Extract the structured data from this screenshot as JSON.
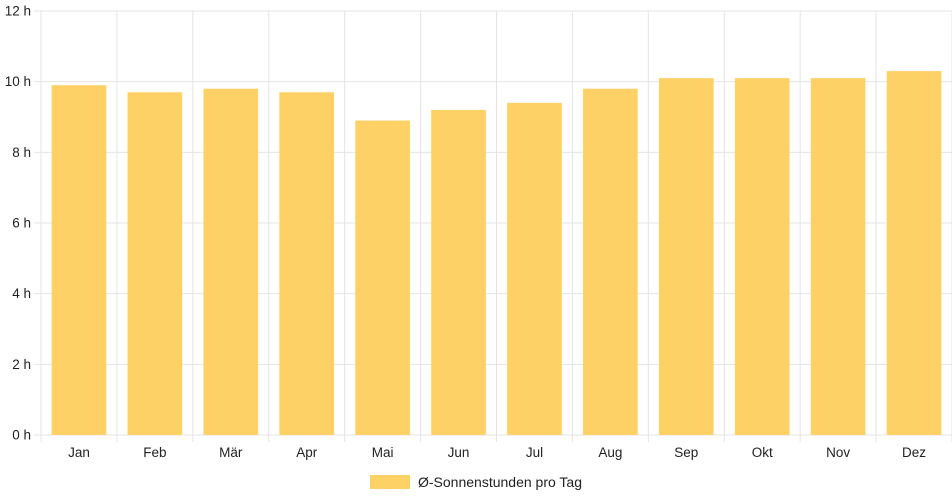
{
  "chart_data": {
    "type": "bar",
    "categories": [
      "Jan",
      "Feb",
      "Mär",
      "Apr",
      "Mai",
      "Jun",
      "Jul",
      "Aug",
      "Sep",
      "Okt",
      "Nov",
      "Dez"
    ],
    "series": [
      {
        "name": "Ø-Sonnenstunden pro Tag",
        "values": [
          9.9,
          9.7,
          9.8,
          9.7,
          8.9,
          9.2,
          9.4,
          9.8,
          10.1,
          10.1,
          10.1,
          10.3
        ],
        "color": "#fdd166"
      }
    ],
    "y_ticks": [
      "0 h",
      "2 h",
      "4 h",
      "6 h",
      "8 h",
      "10 h",
      "12 h"
    ],
    "ylim": [
      0,
      12
    ],
    "grid": true,
    "legend_position": "bottom"
  }
}
